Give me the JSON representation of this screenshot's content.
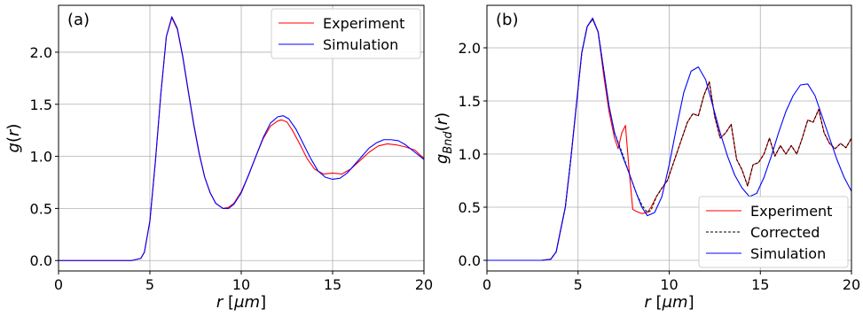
{
  "chart_data": [
    {
      "type": "line",
      "panel_label": "(a)",
      "xlabel": "r [μm]",
      "ylabel": "g(r)",
      "xlim": [
        0,
        20
      ],
      "ylim": [
        -0.1,
        2.45
      ],
      "xticks": [
        0,
        5,
        10,
        15,
        20
      ],
      "yticks": [
        0.0,
        0.5,
        1.0,
        1.5,
        2.0
      ],
      "grid": true,
      "legend_position": "top-right",
      "series": [
        {
          "name": "Experiment",
          "color": "#ff0000",
          "dashed": false,
          "x": [
            0,
            1,
            2,
            3,
            4,
            4.5,
            4.7,
            5.0,
            5.3,
            5.6,
            5.9,
            6.2,
            6.5,
            6.8,
            7.1,
            7.4,
            7.7,
            8.0,
            8.3,
            8.6,
            9.0,
            9.3,
            9.6,
            10.0,
            10.4,
            10.8,
            11.2,
            11.6,
            12.0,
            12.2,
            12.5,
            12.8,
            13.2,
            13.6,
            14.0,
            14.5,
            15.0,
            15.5,
            16.0,
            16.5,
            17.0,
            17.5,
            18.0,
            18.5,
            19.0,
            19.5,
            20.0
          ],
          "y": [
            0,
            0,
            0,
            0,
            0,
            0.02,
            0.08,
            0.38,
            0.95,
            1.6,
            2.15,
            2.33,
            2.22,
            1.95,
            1.62,
            1.3,
            1.02,
            0.8,
            0.65,
            0.55,
            0.5,
            0.51,
            0.55,
            0.66,
            0.82,
            1.0,
            1.17,
            1.29,
            1.34,
            1.35,
            1.33,
            1.25,
            1.12,
            0.98,
            0.88,
            0.83,
            0.84,
            0.83,
            0.88,
            0.96,
            1.04,
            1.1,
            1.12,
            1.11,
            1.09,
            1.06,
            0.98
          ]
        },
        {
          "name": "Simulation",
          "color": "#0000ff",
          "dashed": false,
          "x": [
            0,
            1,
            2,
            3,
            4,
            4.5,
            4.7,
            5.0,
            5.3,
            5.6,
            5.9,
            6.2,
            6.5,
            6.8,
            7.1,
            7.4,
            7.7,
            8.0,
            8.3,
            8.6,
            9.0,
            9.3,
            9.6,
            10.0,
            10.4,
            10.8,
            11.2,
            11.6,
            12.0,
            12.3,
            12.6,
            13.0,
            13.4,
            13.8,
            14.2,
            14.6,
            15.0,
            15.4,
            15.8,
            16.2,
            16.6,
            17.0,
            17.4,
            17.8,
            18.2,
            18.6,
            19.0,
            19.5,
            20.0
          ],
          "y": [
            0,
            0,
            0,
            0,
            0,
            0.02,
            0.08,
            0.38,
            0.95,
            1.6,
            2.15,
            2.34,
            2.23,
            1.96,
            1.63,
            1.31,
            1.03,
            0.8,
            0.65,
            0.55,
            0.5,
            0.5,
            0.54,
            0.65,
            0.82,
            1.0,
            1.18,
            1.32,
            1.38,
            1.39,
            1.36,
            1.26,
            1.12,
            0.98,
            0.86,
            0.8,
            0.78,
            0.79,
            0.84,
            0.92,
            1.0,
            1.08,
            1.13,
            1.16,
            1.16,
            1.15,
            1.11,
            1.04,
            0.97
          ]
        }
      ]
    },
    {
      "type": "line",
      "panel_label": "(b)",
      "xlabel": "r [μm]",
      "ylabel": "g_Bnd(r)",
      "xlim": [
        0,
        20
      ],
      "ylim": [
        -0.1,
        2.4
      ],
      "xticks": [
        0,
        5,
        10,
        15,
        20
      ],
      "yticks": [
        0.0,
        0.5,
        1.0,
        1.5,
        2.0
      ],
      "grid": true,
      "legend_position": "bottom-right",
      "series": [
        {
          "name": "Experiment",
          "color": "#ff0000",
          "dashed": false,
          "x": [
            0,
            1,
            2,
            3,
            3.5,
            3.8,
            4.0,
            4.3,
            4.6,
            4.9,
            5.2,
            5.5,
            5.8,
            6.1,
            6.4,
            6.7,
            7.0,
            7.2,
            7.4,
            7.6,
            7.8,
            8.0,
            8.2,
            8.5,
            8.8,
            9.0,
            9.3,
            9.6,
            9.9,
            10.2,
            10.5,
            10.8,
            11.0,
            11.3,
            11.6,
            11.9,
            12.2,
            12.5,
            12.8,
            13.1,
            13.4,
            13.7,
            14.0,
            14.3,
            14.6,
            14.9,
            15.2,
            15.5,
            15.8,
            16.1,
            16.4,
            16.7,
            17.0,
            17.3,
            17.6,
            17.9,
            18.2,
            18.5,
            18.8,
            19.1,
            19.4,
            19.7,
            20.0
          ],
          "y": [
            0,
            0,
            0,
            0,
            0.01,
            0.08,
            0.25,
            0.5,
            0.95,
            1.45,
            1.95,
            2.2,
            2.27,
            2.15,
            1.75,
            1.4,
            1.15,
            1.05,
            1.2,
            1.27,
            0.85,
            0.48,
            0.46,
            0.44,
            0.45,
            0.5,
            0.6,
            0.68,
            0.75,
            0.9,
            1.05,
            1.2,
            1.3,
            1.38,
            1.36,
            1.55,
            1.68,
            1.35,
            1.15,
            1.2,
            1.28,
            0.95,
            0.85,
            0.7,
            0.9,
            0.92,
            1.0,
            1.15,
            0.98,
            1.08,
            1.0,
            1.08,
            1.0,
            1.15,
            1.32,
            1.3,
            1.42,
            1.2,
            1.1,
            1.05,
            1.1,
            1.06,
            1.15
          ]
        },
        {
          "name": "Corrected",
          "color": "#000000",
          "dashed": true,
          "x": [
            0,
            1,
            2,
            3,
            3.5,
            3.8,
            4.0,
            4.3,
            4.6,
            4.9,
            5.2,
            5.5,
            5.8,
            6.1,
            6.4,
            6.7,
            7.0,
            7.4,
            7.8,
            8.2,
            8.5,
            8.8,
            9.0,
            9.3,
            9.6,
            9.9,
            10.2,
            10.5,
            10.8,
            11.0,
            11.3,
            11.6,
            11.9,
            12.2,
            12.5,
            12.8,
            13.1,
            13.4,
            13.7,
            14.0,
            14.3,
            14.6,
            14.9,
            15.2,
            15.5,
            15.8,
            16.1,
            16.4,
            16.7,
            17.0,
            17.3,
            17.6,
            17.9,
            18.2,
            18.5,
            18.8,
            19.1,
            19.4,
            19.7,
            20.0
          ],
          "y": [
            0,
            0,
            0,
            0,
            0.01,
            0.08,
            0.25,
            0.5,
            0.95,
            1.45,
            1.95,
            2.2,
            2.27,
            2.15,
            1.8,
            1.45,
            1.2,
            1.02,
            0.82,
            0.63,
            0.52,
            0.45,
            0.47,
            0.6,
            0.68,
            0.75,
            0.9,
            1.05,
            1.2,
            1.3,
            1.38,
            1.36,
            1.55,
            1.68,
            1.35,
            1.15,
            1.2,
            1.28,
            0.95,
            0.85,
            0.7,
            0.9,
            0.92,
            1.0,
            1.15,
            0.98,
            1.08,
            1.0,
            1.08,
            1.0,
            1.15,
            1.32,
            1.3,
            1.42,
            1.2,
            1.1,
            1.05,
            1.1,
            1.06,
            1.15
          ]
        },
        {
          "name": "Simulation",
          "color": "#0000ff",
          "dashed": false,
          "x": [
            0,
            1,
            2,
            3,
            3.5,
            3.8,
            4.0,
            4.3,
            4.6,
            4.9,
            5.2,
            5.5,
            5.8,
            6.1,
            6.4,
            6.7,
            7.0,
            7.4,
            7.8,
            8.2,
            8.5,
            8.8,
            9.2,
            9.6,
            10.0,
            10.4,
            10.8,
            11.2,
            11.6,
            12.0,
            12.4,
            12.8,
            13.2,
            13.6,
            14.0,
            14.4,
            14.8,
            15.2,
            15.6,
            16.0,
            16.4,
            16.8,
            17.2,
            17.6,
            18.0,
            18.4,
            18.8,
            19.2,
            19.6,
            20.0
          ],
          "y": [
            0,
            0,
            0,
            0,
            0.01,
            0.08,
            0.25,
            0.5,
            0.95,
            1.45,
            1.95,
            2.2,
            2.28,
            2.15,
            1.8,
            1.45,
            1.2,
            1.0,
            0.82,
            0.63,
            0.5,
            0.42,
            0.45,
            0.6,
            0.9,
            1.25,
            1.58,
            1.78,
            1.82,
            1.7,
            1.45,
            1.2,
            0.98,
            0.8,
            0.68,
            0.6,
            0.63,
            0.78,
            0.98,
            1.2,
            1.4,
            1.55,
            1.65,
            1.66,
            1.55,
            1.35,
            1.15,
            0.95,
            0.78,
            0.65
          ]
        }
      ]
    }
  ]
}
